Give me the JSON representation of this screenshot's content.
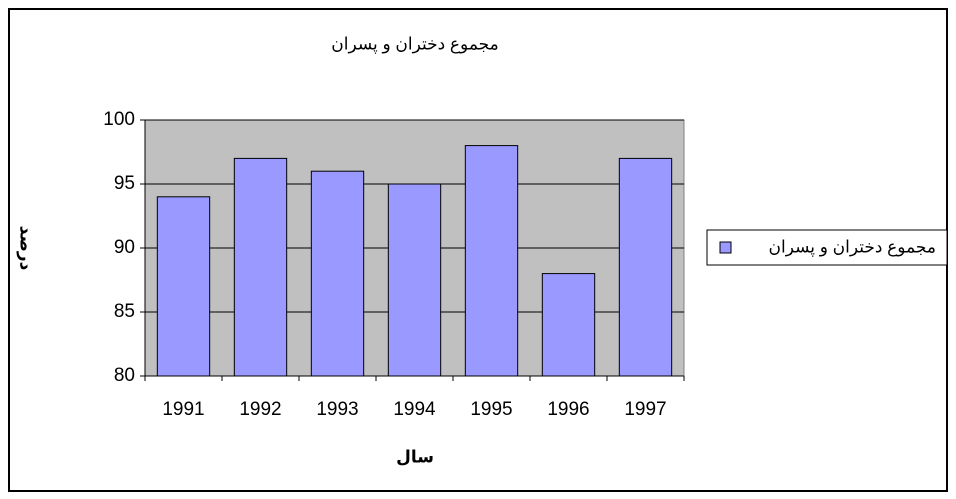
{
  "chart_data": {
    "type": "bar",
    "title": "مجموع دختران و پسران",
    "x_label": "سال",
    "y_label": "درصد",
    "categories": [
      "1991",
      "1992",
      "1993",
      "1994",
      "1995",
      "1996",
      "1997"
    ],
    "series": [
      {
        "name": "مجموع دختران و پسران",
        "color": "#9999ff",
        "values": [
          94,
          97,
          96,
          95,
          98,
          88,
          97
        ]
      }
    ],
    "ylim": [
      80,
      100
    ],
    "yticks": [
      80,
      85,
      90,
      95,
      100
    ],
    "grid": true,
    "legend": "right"
  }
}
